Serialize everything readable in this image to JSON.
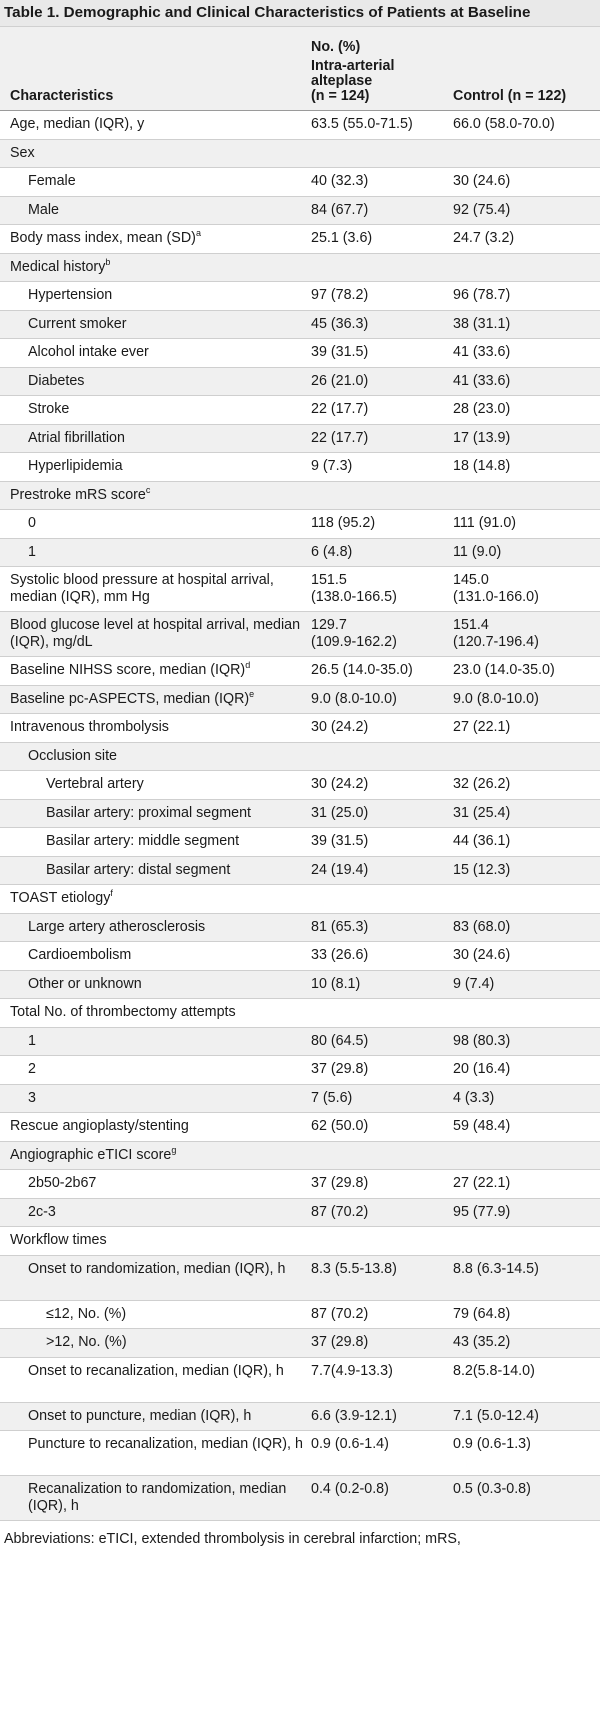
{
  "title": "Table 1. Demographic and Clinical Characteristics of Patients at Baseline",
  "header": {
    "group_label": "No. (%)",
    "col1": "Characteristics",
    "col2_line1": "Intra-arterial",
    "col2_line2": "alteplase",
    "col2_line3": "(n = 124)",
    "col3": "Control (n = 122)"
  },
  "rows": [
    {
      "label": "Age, median (IQR), y",
      "indent": 0,
      "a": "63.5 (55.0-71.5)",
      "b": "66.0 (58.0-70.0)"
    },
    {
      "label": "Sex",
      "indent": 0,
      "a": "",
      "b": ""
    },
    {
      "label": "Female",
      "indent": 1,
      "a": "40 (32.3)",
      "b": "30 (24.6)"
    },
    {
      "label": "Male",
      "indent": 1,
      "a": "84 (67.7)",
      "b": "92 (75.4)"
    },
    {
      "label": "Body mass index, mean (SD)",
      "sup": "a",
      "indent": 0,
      "a": "25.1 (3.6)",
      "b": "24.7 (3.2)"
    },
    {
      "label": "Medical history",
      "sup": "b",
      "indent": 0,
      "a": "",
      "b": ""
    },
    {
      "label": "Hypertension",
      "indent": 1,
      "a": "97 (78.2)",
      "b": "96 (78.7)"
    },
    {
      "label": "Current smoker",
      "indent": 1,
      "a": "45 (36.3)",
      "b": "38 (31.1)"
    },
    {
      "label": "Alcohol intake ever",
      "indent": 1,
      "a": "39 (31.5)",
      "b": "41 (33.6)"
    },
    {
      "label": "Diabetes",
      "indent": 1,
      "a": "26 (21.0)",
      "b": "41 (33.6)"
    },
    {
      "label": "Stroke",
      "indent": 1,
      "a": "22 (17.7)",
      "b": "28 (23.0)"
    },
    {
      "label": "Atrial fibrillation",
      "indent": 1,
      "a": "22 (17.7)",
      "b": "17 (13.9)"
    },
    {
      "label": "Hyperlipidemia",
      "indent": 1,
      "a": "9 (7.3)",
      "b": "18 (14.8)"
    },
    {
      "label": "Prestroke mRS score",
      "sup": "c",
      "indent": 0,
      "a": "",
      "b": ""
    },
    {
      "label": "0",
      "indent": 1,
      "a": "118 (95.2)",
      "b": "111 (91.0)"
    },
    {
      "label": "1",
      "indent": 1,
      "a": "6 (4.8)",
      "b": "11 (9.0)"
    },
    {
      "label": "Systolic blood pressure at hospital arrival, median (IQR), mm Hg",
      "indent": 0,
      "double": true,
      "a": "151.5",
      "a2": "(138.0-166.5)",
      "b": "145.0",
      "b2": "(131.0-166.0)"
    },
    {
      "label": "Blood glucose level at hospital arrival, median (IQR), mg/dL",
      "indent": 0,
      "double": true,
      "a": "129.7",
      "a2": "(109.9-162.2)",
      "b": "151.4",
      "b2": "(120.7-196.4)"
    },
    {
      "label": "Baseline NIHSS score, median (IQR)",
      "sup": "d",
      "indent": 0,
      "a": "26.5 (14.0-35.0)",
      "b": "23.0 (14.0-35.0)"
    },
    {
      "label": "Baseline pc-ASPECTS, median (IQR)",
      "sup": "e",
      "indent": 0,
      "a": "9.0 (8.0-10.0)",
      "b": "9.0 (8.0-10.0)"
    },
    {
      "label": "Intravenous thrombolysis",
      "indent": 0,
      "a": "30 (24.2)",
      "b": "27 (22.1)"
    },
    {
      "label": "Occlusion site",
      "indent": 1,
      "a": "",
      "b": ""
    },
    {
      "label": "Vertebral artery",
      "indent": 2,
      "a": "30 (24.2)",
      "b": "32 (26.2)"
    },
    {
      "label": "Basilar artery: proximal segment",
      "indent": 2,
      "a": "31 (25.0)",
      "b": "31 (25.4)"
    },
    {
      "label": "Basilar artery: middle segment",
      "indent": 2,
      "a": "39 (31.5)",
      "b": "44 (36.1)"
    },
    {
      "label": "Basilar artery: distal segment",
      "indent": 2,
      "a": "24 (19.4)",
      "b": "15 (12.3)"
    },
    {
      "label": "TOAST etiology",
      "sup": "f",
      "indent": 0,
      "a": "",
      "b": ""
    },
    {
      "label": "Large artery atherosclerosis",
      "indent": 1,
      "a": "81 (65.3)",
      "b": "83 (68.0)"
    },
    {
      "label": "Cardioembolism",
      "indent": 1,
      "a": "33 (26.6)",
      "b": "30 (24.6)"
    },
    {
      "label": "Other or unknown",
      "indent": 1,
      "a": "10 (8.1)",
      "b": "9 (7.4)"
    },
    {
      "label": "Total No. of thrombectomy attempts",
      "indent": 0,
      "a": "",
      "b": ""
    },
    {
      "label": "1",
      "indent": 1,
      "a": "80 (64.5)",
      "b": "98 (80.3)"
    },
    {
      "label": "2",
      "indent": 1,
      "a": "37 (29.8)",
      "b": "20 (16.4)"
    },
    {
      "label": "3",
      "indent": 1,
      "a": "7 (5.6)",
      "b": "4 (3.3)"
    },
    {
      "label": "Rescue angioplasty/stenting",
      "indent": 0,
      "a": "62 (50.0)",
      "b": "59 (48.4)"
    },
    {
      "label": "Angiographic eTICI score",
      "sup": "g",
      "indent": 0,
      "a": "",
      "b": ""
    },
    {
      "label": "2b50-2b67",
      "indent": 1,
      "a": "37 (29.8)",
      "b": "27 (22.1)"
    },
    {
      "label": "2c-3",
      "indent": 1,
      "a": "87 (70.2)",
      "b": "95 (77.9)"
    },
    {
      "label": "Workflow times",
      "indent": 0,
      "a": "",
      "b": ""
    },
    {
      "label": "Onset to randomization, median (IQR), h",
      "indent": 1,
      "double": true,
      "a": "8.3 (5.5-13.8)",
      "a2": "",
      "b": "8.8 (6.3-14.5)",
      "b2": ""
    },
    {
      "label": "≤12, No. (%)",
      "indent": 2,
      "a": "87 (70.2)",
      "b": "79 (64.8)"
    },
    {
      "label": ">12, No. (%)",
      "indent": 2,
      "a": "37 (29.8)",
      "b": "43 (35.2)"
    },
    {
      "label": "Onset to recanalization, median (IQR), h",
      "indent": 1,
      "double": true,
      "a": "7.7(4.9-13.3)",
      "a2": "",
      "b": "8.2(5.8-14.0)",
      "b2": ""
    },
    {
      "label": "Onset to puncture, median (IQR), h",
      "indent": 1,
      "a": "6.6 (3.9-12.1)",
      "b": "7.1 (5.0-12.4)"
    },
    {
      "label": "Puncture to recanalization, median (IQR), h",
      "indent": 1,
      "double": true,
      "a": "0.9 (0.6-1.4)",
      "a2": "",
      "b": "0.9 (0.6-1.3)",
      "b2": ""
    },
    {
      "label": "Recanalization to randomization, median (IQR), h",
      "indent": 1,
      "double": true,
      "a": "0.4 (0.2-0.8)",
      "a2": "",
      "b": "0.5 (0.3-0.8)",
      "b2": ""
    }
  ],
  "footnote": "Abbreviations: eTICI, extended thrombolysis in cerebral infarction; mRS,"
}
